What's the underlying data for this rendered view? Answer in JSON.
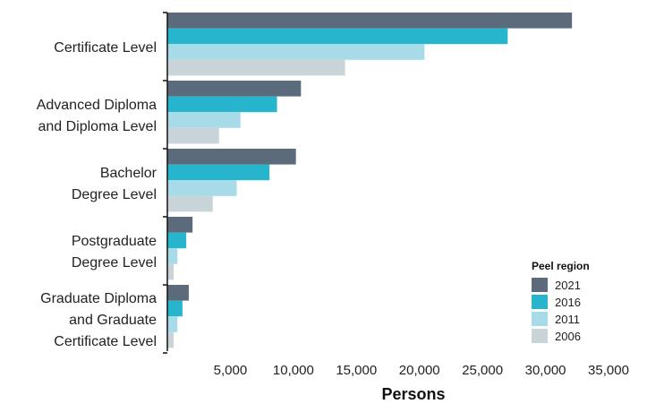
{
  "chart_data": {
    "type": "bar",
    "orientation": "horizontal",
    "categories": [
      "Certificate Level",
      "Advanced Diploma and Diploma Level",
      "Bachelor Degree Level",
      "Postgraduate Degree Level",
      "Graduate Diploma and Graduate Certificate Level"
    ],
    "category_label_lines": [
      [
        "Certificate Level"
      ],
      [
        "Advanced Diploma",
        "and Diploma Level"
      ],
      [
        "Bachelor",
        "Degree Level"
      ],
      [
        "Postgraduate",
        "Degree Level"
      ],
      [
        "Graduate Diploma",
        "and Graduate",
        "Certificate Level"
      ]
    ],
    "series": [
      {
        "name": "2021",
        "color": "#5b6b7c",
        "values": [
          32100,
          10600,
          10200,
          2000,
          1700
        ]
      },
      {
        "name": "2016",
        "color": "#26b5cc",
        "values": [
          27000,
          8700,
          8100,
          1500,
          1200
        ]
      },
      {
        "name": "2011",
        "color": "#a7dbe7",
        "values": [
          20400,
          5800,
          5500,
          800,
          800
        ]
      },
      {
        "name": "2006",
        "color": "#c9d4d9",
        "values": [
          14100,
          4100,
          3600,
          500,
          500
        ]
      }
    ],
    "xlabel": "Persons",
    "ylabel": "",
    "xlim": [
      0,
      35000
    ],
    "x_ticks": [
      5000,
      10000,
      15000,
      20000,
      25000,
      30000,
      35000
    ],
    "x_tick_labels": [
      "5,000",
      "10,000",
      "15,000",
      "20,000",
      "25,000",
      "30,000",
      "35,000"
    ],
    "grid": false,
    "legend": {
      "title": "Peel region",
      "placement": "bottom-right"
    }
  }
}
